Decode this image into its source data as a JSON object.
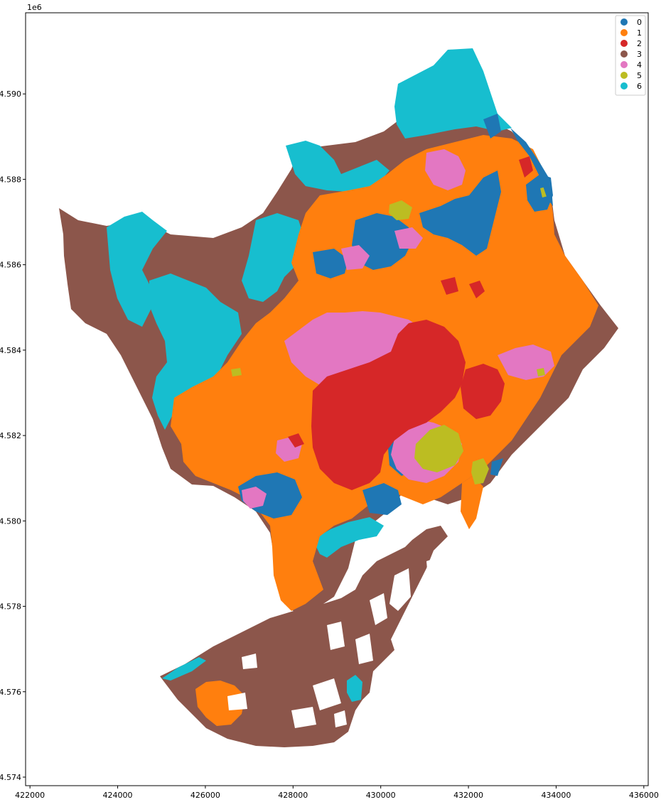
{
  "axes": {
    "offset_label": "1e6",
    "x_ticks": [
      {
        "value": 422000,
        "label": "422000"
      },
      {
        "value": 424000,
        "label": "424000"
      },
      {
        "value": 426000,
        "label": "426000"
      },
      {
        "value": 428000,
        "label": "428000"
      },
      {
        "value": 430000,
        "label": "430000"
      },
      {
        "value": 432000,
        "label": "432000"
      },
      {
        "value": 434000,
        "label": "434000"
      },
      {
        "value": 436000,
        "label": "436000"
      }
    ],
    "y_ticks": [
      {
        "value": 4574000,
        "label": "4.574"
      },
      {
        "value": 4576000,
        "label": "4.576"
      },
      {
        "value": 4578000,
        "label": "4.578"
      },
      {
        "value": 4580000,
        "label": "4.580"
      },
      {
        "value": 4582000,
        "label": "4.582"
      },
      {
        "value": 4584000,
        "label": "4.584"
      },
      {
        "value": 4586000,
        "label": "4.586"
      },
      {
        "value": 4588000,
        "label": "4.588"
      },
      {
        "value": 4590000,
        "label": "4.590"
      }
    ],
    "xlim": [
      421900,
      436100
    ],
    "ylim": [
      4573800,
      4591900
    ]
  },
  "legend": {
    "placement": "top-right",
    "items": [
      {
        "label": "0",
        "color": "#1f77b4"
      },
      {
        "label": "1",
        "color": "#ff7f0e"
      },
      {
        "label": "2",
        "color": "#d62728"
      },
      {
        "label": "3",
        "color": "#8c564b"
      },
      {
        "label": "4",
        "color": "#e377c2"
      },
      {
        "label": "5",
        "color": "#bcbd22"
      },
      {
        "label": "6",
        "color": "#17becf"
      }
    ]
  },
  "map": {
    "type": "choropleth",
    "region_colors": {
      "0": "#1f77b4",
      "1": "#ff7f0e",
      "2": "#d62728",
      "3": "#8c564b",
      "4": "#e377c2",
      "5": "#bcbd22",
      "6": "#17becf"
    }
  }
}
